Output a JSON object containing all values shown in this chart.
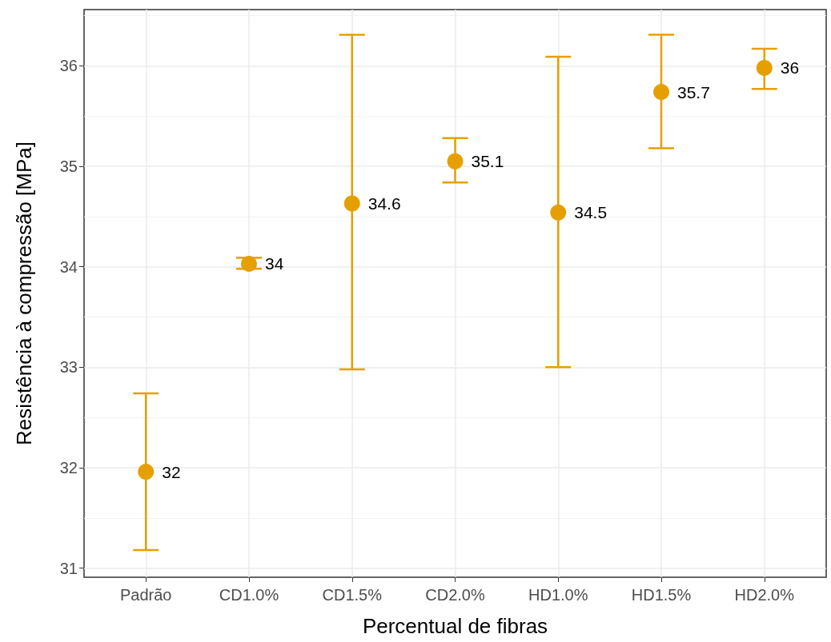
{
  "chart_data": {
    "type": "scatter",
    "xlabel": "Percentual de fibras",
    "ylabel": "Resistência à compressão [MPa]",
    "categories": [
      "Padrão",
      "CD1.0%",
      "CD1.5%",
      "CD2.0%",
      "HD1.0%",
      "HD1.5%",
      "HD2.0%"
    ],
    "values": [
      31.96,
      34.03,
      34.63,
      35.05,
      34.54,
      35.74,
      35.98
    ],
    "value_labels": [
      "32",
      "34",
      "34.6",
      "35.1",
      "34.5",
      "35.7",
      "36"
    ],
    "errors": [
      [
        31.18,
        32.74
      ],
      [
        33.98,
        34.09
      ],
      [
        32.98,
        36.31
      ],
      [
        34.84,
        35.28
      ],
      [
        33.0,
        36.09
      ],
      [
        35.18,
        36.31
      ],
      [
        35.77,
        36.17
      ]
    ],
    "color": "#e69f00",
    "marker": "circle",
    "ylim": [
      30.91,
      36.56
    ],
    "yticks": [
      31,
      32,
      33,
      34,
      35,
      36
    ],
    "grid": true
  }
}
